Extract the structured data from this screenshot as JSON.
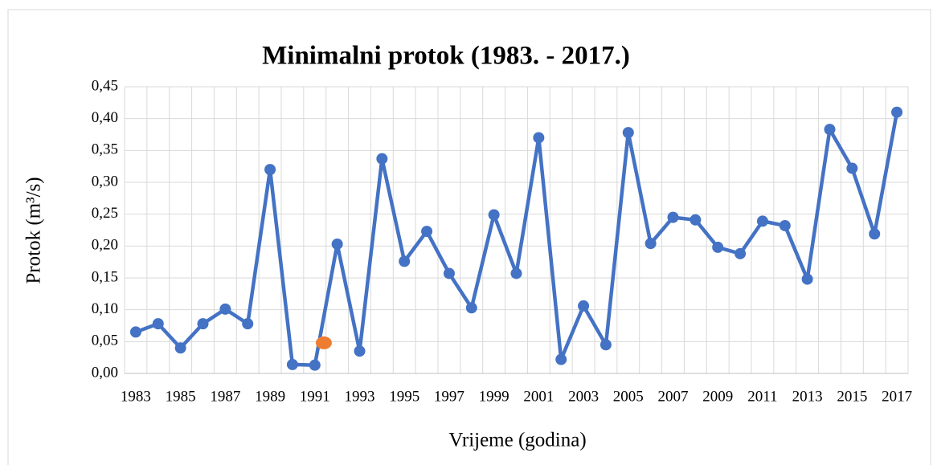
{
  "chart_data": {
    "type": "line",
    "title": "Minimalni protok (1983. - 2017.)",
    "x_label": "Vrijeme (godina)",
    "y_label": "Protok (m³/s)",
    "x": [
      1983,
      1984,
      1985,
      1986,
      1987,
      1988,
      1989,
      1990,
      1991,
      1992,
      1993,
      1994,
      1995,
      1996,
      1997,
      1998,
      1999,
      2000,
      2001,
      2002,
      2003,
      2004,
      2005,
      2006,
      2007,
      2008,
      2009,
      2010,
      2011,
      2012,
      2013,
      2014,
      2015,
      2016,
      2017
    ],
    "series": [
      {
        "color": "#4472c4",
        "values": [
          0.065,
          0.078,
          0.04,
          0.078,
          0.101,
          0.078,
          0.32,
          0.014,
          0.013,
          0.203,
          0.035,
          0.337,
          0.176,
          0.223,
          0.157,
          0.103,
          0.249,
          0.157,
          0.37,
          0.022,
          0.106,
          0.045,
          0.378,
          0.204,
          0.245,
          0.241,
          0.198,
          0.188,
          0.239,
          0.232,
          0.148,
          0.383,
          0.322,
          0.219,
          0.41
        ]
      }
    ],
    "highlight": {
      "x": 1991.4,
      "value": 0.048,
      "color": "#ed7d31"
    },
    "xlim": [
      1982.5,
      2017.5
    ],
    "xticks": [
      1983,
      1985,
      1987,
      1989,
      1991,
      1993,
      1995,
      1997,
      1999,
      2001,
      2003,
      2005,
      2007,
      2009,
      2011,
      2013,
      2015,
      2017
    ],
    "ylim": [
      0,
      0.45
    ],
    "yticks": [
      {
        "value": 0,
        "label": "0,00"
      },
      {
        "value": 0.05,
        "label": "0,05"
      },
      {
        "value": 0.1,
        "label": "0,10"
      },
      {
        "value": 0.15,
        "label": "0,15"
      },
      {
        "value": 0.2,
        "label": "0,20"
      },
      {
        "value": 0.25,
        "label": "0,25"
      },
      {
        "value": 0.3,
        "label": "0,30"
      },
      {
        "value": 0.35,
        "label": "0,35"
      },
      {
        "value": 0.4,
        "label": "0,40"
      },
      {
        "value": 0.45,
        "label": "0,45"
      }
    ],
    "grid": true
  }
}
